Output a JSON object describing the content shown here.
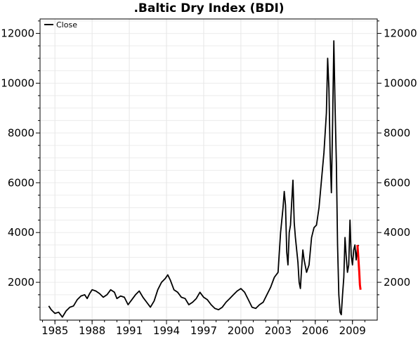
{
  "chart_data": {
    "type": "line",
    "title": ".Baltic Dry Index (BDI)",
    "xlabel": "",
    "ylabel": "",
    "xlim": [
      1983.8,
      2011.0
    ],
    "ylim": [
      480,
      12580
    ],
    "x_ticks": [
      1985,
      1988,
      1991,
      1994,
      1997,
      2000,
      2003,
      2006,
      2009
    ],
    "x_tick_labels": [
      "1985",
      "1988",
      "1991",
      "1994",
      "1997",
      "2000",
      "2003",
      "2006",
      "2009"
    ],
    "y_ticks": [
      2000,
      4000,
      6000,
      8000,
      10000,
      12000
    ],
    "y_tick_labels": [
      "2000",
      "4000",
      "6000",
      "8000",
      "10000",
      "12000"
    ],
    "grid": true,
    "legend_position": "top-left",
    "series": [
      {
        "name": "Close",
        "color": "#000000",
        "x": [
          1984.5,
          1984.7,
          1985.0,
          1985.3,
          1985.6,
          1985.9,
          1986.2,
          1986.5,
          1986.8,
          1987.1,
          1987.4,
          1987.6,
          1987.8,
          1988.0,
          1988.3,
          1988.6,
          1988.9,
          1989.2,
          1989.5,
          1989.8,
          1990.0,
          1990.3,
          1990.6,
          1990.9,
          1991.2,
          1991.5,
          1991.8,
          1992.1,
          1992.4,
          1992.7,
          1993.0,
          1993.3,
          1993.6,
          1993.9,
          1994.1,
          1994.3,
          1994.6,
          1994.9,
          1995.2,
          1995.5,
          1995.8,
          1996.1,
          1996.4,
          1996.7,
          1997.0,
          1997.3,
          1997.6,
          1997.9,
          1998.2,
          1998.5,
          1998.8,
          1999.1,
          1999.4,
          1999.7,
          2000.0,
          2000.3,
          2000.6,
          2000.9,
          2001.2,
          2001.5,
          2001.8,
          2002.1,
          2002.4,
          2002.7,
          2003.0,
          2003.2,
          2003.4,
          2003.5,
          2003.6,
          2003.7,
          2003.8,
          2003.9,
          2004.0,
          2004.1,
          2004.2,
          2004.3,
          2004.4,
          2004.5,
          2004.6,
          2004.7,
          2004.8,
          2004.9,
          2005.0,
          2005.1,
          2005.3,
          2005.5,
          2005.7,
          2005.9,
          2006.1,
          2006.3,
          2006.5,
          2006.7,
          2006.9,
          2007.0,
          2007.1,
          2007.2,
          2007.3,
          2007.4,
          2007.5,
          2007.6,
          2007.7,
          2007.8,
          2007.9,
          2008.0,
          2008.1,
          2008.2,
          2008.3,
          2008.4,
          2008.5,
          2008.6,
          2008.7,
          2008.8,
          2008.9,
          2009.0,
          2009.1,
          2009.2,
          2009.3,
          2009.4,
          2009.5
        ],
        "y": [
          1050,
          900,
          750,
          800,
          600,
          850,
          1000,
          1050,
          1300,
          1450,
          1500,
          1350,
          1550,
          1700,
          1650,
          1550,
          1400,
          1500,
          1700,
          1600,
          1350,
          1450,
          1400,
          1100,
          1300,
          1500,
          1650,
          1400,
          1200,
          1000,
          1250,
          1700,
          2000,
          2150,
          2300,
          2100,
          1700,
          1600,
          1400,
          1350,
          1100,
          1200,
          1350,
          1600,
          1400,
          1300,
          1100,
          950,
          900,
          1000,
          1200,
          1350,
          1500,
          1650,
          1750,
          1600,
          1300,
          1000,
          950,
          1100,
          1200,
          1500,
          1800,
          2200,
          2400,
          4000,
          5000,
          5650,
          5100,
          3200,
          2700,
          4000,
          4300,
          5200,
          6100,
          4400,
          3800,
          3300,
          2800,
          2000,
          1750,
          2600,
          3300,
          2900,
          2400,
          2700,
          3800,
          4200,
          4300,
          5000,
          6100,
          7200,
          8800,
          11000,
          9800,
          7200,
          5600,
          8500,
          11700,
          9000,
          6800,
          3500,
          1500,
          800,
          700,
          1500,
          2200,
          3800,
          3000,
          2400,
          2700,
          4500,
          3100,
          2700,
          3300,
          3500,
          2900,
          3400,
          3500
        ]
      },
      {
        "name": "",
        "color": "#ff0000",
        "x": [
          2009.4,
          2009.45,
          2009.5,
          2009.55,
          2009.6,
          2009.65
        ],
        "y": [
          3500,
          3200,
          2800,
          2400,
          1900,
          1700
        ]
      }
    ]
  }
}
